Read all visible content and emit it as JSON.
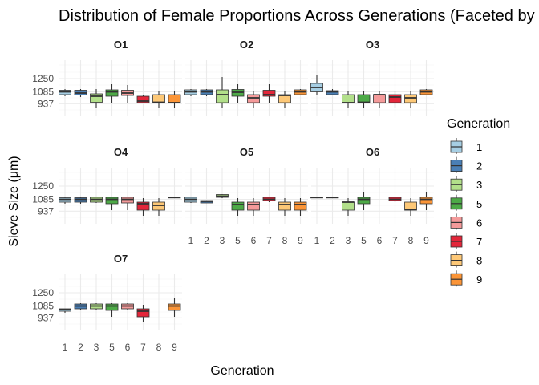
{
  "chart_data": {
    "type": "boxplot",
    "title": "Distribution of Female Proportions Across Generations (Faceted by Sieve Size)",
    "xlabel": "Generation",
    "ylabel": "Sieve Size (μm)",
    "categories": [
      "1",
      "2",
      "3",
      "5",
      "6",
      "7",
      "8",
      "9"
    ],
    "y_ticks": [
      937,
      1085,
      1250
    ],
    "ylim": [
      780,
      1480
    ],
    "grid": true,
    "legend": {
      "title": "Generation",
      "position": "right"
    },
    "colors": {
      "1": "#a6cee3",
      "2": "#4a7fb5",
      "3": "#b2df8a",
      "5": "#4daa47",
      "6": "#f49a9a",
      "7": "#e3263a",
      "8": "#fdc877",
      "9": "#fb9538"
    },
    "panels": [
      {
        "name": "O1",
        "boxes": [
          {
            "gen": "1",
            "min": 1030,
            "q1": 1050,
            "median": 1085,
            "q3": 1105,
            "max": 1120
          },
          {
            "gen": "2",
            "min": 1020,
            "q1": 1045,
            "median": 1070,
            "q3": 1105,
            "max": 1120
          },
          {
            "gen": "3",
            "min": 880,
            "q1": 955,
            "median": 1030,
            "q3": 1060,
            "max": 1120
          },
          {
            "gen": "5",
            "min": 950,
            "q1": 1030,
            "median": 1085,
            "q3": 1110,
            "max": 1180
          },
          {
            "gen": "6",
            "min": 950,
            "q1": 1040,
            "median": 1070,
            "q3": 1105,
            "max": 1170
          },
          {
            "gen": "7",
            "min": 950,
            "q1": 950,
            "median": 970,
            "q3": 1030,
            "max": 1040
          },
          {
            "gen": "8",
            "min": 880,
            "q1": 950,
            "median": 955,
            "q3": 1050,
            "max": 1100
          },
          {
            "gen": "9",
            "min": 880,
            "q1": 950,
            "median": 950,
            "q3": 1050,
            "max": 1100
          }
        ]
      },
      {
        "name": "O2",
        "boxes": [
          {
            "gen": "1",
            "min": 1030,
            "q1": 1050,
            "median": 1085,
            "q3": 1110,
            "max": 1120
          },
          {
            "gen": "2",
            "min": 1030,
            "q1": 1050,
            "median": 1085,
            "q3": 1110,
            "max": 1120
          },
          {
            "gen": "3",
            "min": 880,
            "q1": 950,
            "median": 1050,
            "q3": 1110,
            "max": 1270
          },
          {
            "gen": "5",
            "min": 950,
            "q1": 1030,
            "median": 1080,
            "q3": 1115,
            "max": 1180
          },
          {
            "gen": "6",
            "min": 880,
            "q1": 950,
            "median": 1010,
            "q3": 1050,
            "max": 1100
          },
          {
            "gen": "7",
            "min": 950,
            "q1": 1030,
            "median": 1050,
            "q3": 1105,
            "max": 1180
          },
          {
            "gen": "8",
            "min": 880,
            "q1": 950,
            "median": 1040,
            "q3": 1050,
            "max": 1100
          },
          {
            "gen": "9",
            "min": 1040,
            "q1": 1050,
            "median": 1085,
            "q3": 1110,
            "max": 1120
          }
        ]
      },
      {
        "name": "O3",
        "boxes": [
          {
            "gen": "1",
            "min": 1050,
            "q1": 1085,
            "median": 1140,
            "q3": 1190,
            "max": 1300
          },
          {
            "gen": "2",
            "min": 1040,
            "q1": 1050,
            "median": 1085,
            "q3": 1100,
            "max": 1120
          },
          {
            "gen": "3",
            "min": 880,
            "q1": 950,
            "median": 950,
            "q3": 1050,
            "max": 1100
          },
          {
            "gen": "5",
            "min": 880,
            "q1": 950,
            "median": 955,
            "q3": 1050,
            "max": 1100
          },
          {
            "gen": "6",
            "min": 880,
            "q1": 950,
            "median": 1050,
            "q3": 1050,
            "max": 1100
          },
          {
            "gen": "7",
            "min": 880,
            "q1": 950,
            "median": 1020,
            "q3": 1050,
            "max": 1100
          },
          {
            "gen": "8",
            "min": 880,
            "q1": 950,
            "median": 1010,
            "q3": 1050,
            "max": 1100
          },
          {
            "gen": "9",
            "min": 1040,
            "q1": 1050,
            "median": 1085,
            "q3": 1110,
            "max": 1120
          }
        ]
      },
      {
        "name": "O4",
        "boxes": [
          {
            "gen": "1",
            "min": 1030,
            "q1": 1050,
            "median": 1085,
            "q3": 1105,
            "max": 1120
          },
          {
            "gen": "2",
            "min": 1030,
            "q1": 1050,
            "median": 1085,
            "q3": 1105,
            "max": 1120
          },
          {
            "gen": "3",
            "min": 1040,
            "q1": 1050,
            "median": 1085,
            "q3": 1110,
            "max": 1120
          },
          {
            "gen": "5",
            "min": 950,
            "q1": 1030,
            "median": 1085,
            "q3": 1110,
            "max": 1120
          },
          {
            "gen": "6",
            "min": 950,
            "q1": 1040,
            "median": 1085,
            "q3": 1110,
            "max": 1120
          },
          {
            "gen": "7",
            "min": 880,
            "q1": 950,
            "median": 1030,
            "q3": 1050,
            "max": 1100
          },
          {
            "gen": "8",
            "min": 880,
            "q1": 950,
            "median": 1010,
            "q3": 1050,
            "max": 1100
          },
          {
            "gen": "9",
            "min": 1110,
            "q1": 1110,
            "median": 1110,
            "q3": 1110,
            "max": 1110
          }
        ]
      },
      {
        "name": "O5",
        "boxes": [
          {
            "gen": "1",
            "min": 1040,
            "q1": 1050,
            "median": 1085,
            "q3": 1110,
            "max": 1120
          },
          {
            "gen": "2",
            "min": 1040,
            "q1": 1040,
            "median": 1060,
            "q3": 1070,
            "max": 1070
          },
          {
            "gen": "3",
            "min": 1100,
            "q1": 1110,
            "median": 1125,
            "q3": 1145,
            "max": 1150
          },
          {
            "gen": "5",
            "min": 880,
            "q1": 950,
            "median": 1020,
            "q3": 1050,
            "max": 1100
          },
          {
            "gen": "6",
            "min": 880,
            "q1": 950,
            "median": 1020,
            "q3": 1050,
            "max": 1100
          },
          {
            "gen": "7",
            "min": 1050,
            "q1": 1065,
            "median": 1085,
            "q3": 1110,
            "max": 1120
          },
          {
            "gen": "8",
            "min": 880,
            "q1": 950,
            "median": 1020,
            "q3": 1050,
            "max": 1100
          },
          {
            "gen": "9",
            "min": 880,
            "q1": 950,
            "median": 1020,
            "q3": 1050,
            "max": 1100
          }
        ]
      },
      {
        "name": "O6",
        "boxes": [
          {
            "gen": "1",
            "min": 1110,
            "q1": 1110,
            "median": 1110,
            "q3": 1110,
            "max": 1110
          },
          {
            "gen": "2",
            "min": 1110,
            "q1": 1110,
            "median": 1110,
            "q3": 1110,
            "max": 1110
          },
          {
            "gen": "3",
            "min": 880,
            "q1": 950,
            "median": 1050,
            "q3": 1050,
            "max": 1100
          },
          {
            "gen": "5",
            "min": 950,
            "q1": 1030,
            "median": 1085,
            "q3": 1110,
            "max": 1180
          },
          {
            "gen": "7",
            "min": 1050,
            "q1": 1065,
            "median": 1085,
            "q3": 1110,
            "max": 1120
          },
          {
            "gen": "8",
            "min": 880,
            "q1": 950,
            "median": 955,
            "q3": 1050,
            "max": 1100
          },
          {
            "gen": "9",
            "min": 950,
            "q1": 1030,
            "median": 1085,
            "q3": 1110,
            "max": 1180
          }
        ]
      },
      {
        "name": "O7",
        "boxes": [
          {
            "gen": "1",
            "min": 1000,
            "q1": 1020,
            "median": 1040,
            "q3": 1050,
            "max": 1050
          },
          {
            "gen": "2",
            "min": 1030,
            "q1": 1050,
            "median": 1085,
            "q3": 1110,
            "max": 1120
          },
          {
            "gen": "3",
            "min": 1040,
            "q1": 1050,
            "median": 1085,
            "q3": 1110,
            "max": 1120
          },
          {
            "gen": "5",
            "min": 950,
            "q1": 1030,
            "median": 1085,
            "q3": 1110,
            "max": 1120
          },
          {
            "gen": "6",
            "min": 1040,
            "q1": 1050,
            "median": 1085,
            "q3": 1110,
            "max": 1120
          },
          {
            "gen": "7",
            "min": 880,
            "q1": 950,
            "median": 1020,
            "q3": 1050,
            "max": 1100
          },
          {
            "gen": "9",
            "min": 950,
            "q1": 1030,
            "median": 1085,
            "q3": 1110,
            "max": 1180
          }
        ]
      }
    ]
  }
}
